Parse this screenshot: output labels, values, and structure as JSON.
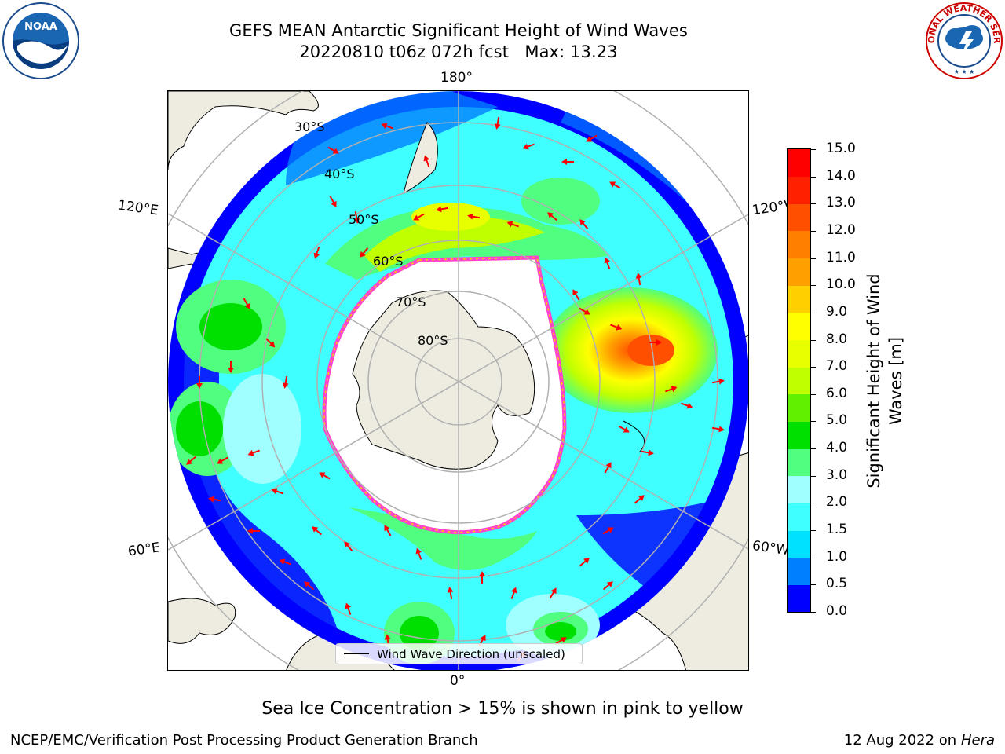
{
  "header": {
    "title_line1": "GEFS MEAN Antarctic Significant Height of Wind Waves",
    "title_line2": "20220810 t06z 072h fcst   Max: 13.23"
  },
  "logos": {
    "left": "noaa-logo",
    "left_text": "NOAA",
    "right": "national-weather-service-logo",
    "right_text": "NATIONAL WEATHER SERVICE"
  },
  "map": {
    "projection": "south-polar-stereographic",
    "longitude_labels": {
      "top": "180°",
      "bottom": "0°",
      "upper_left": "120°E",
      "upper_right": "120°W",
      "lower_left": "60°E",
      "lower_right": "60°W"
    },
    "latitude_labels": [
      "30°S",
      "40°S",
      "50°S",
      "60°S",
      "70°S",
      "80°S"
    ],
    "colors": {
      "land": "#eeece0",
      "ice_edge": "#ff44cc",
      "graticule": "#b0b0b0",
      "arrow": "#ff0000"
    },
    "legend": {
      "label": "Wind Wave Direction (unscaled)"
    }
  },
  "colorbar": {
    "label_line1": "Significant Height of Wind",
    "label_line2": "Waves [m]",
    "ticks": [
      "0.0",
      "0.5",
      "1.0",
      "1.5",
      "2.0",
      "3.0",
      "4.0",
      "5.0",
      "6.0",
      "7.0",
      "8.0",
      "9.0",
      "10.0",
      "11.0",
      "12.0",
      "13.0",
      "14.0",
      "15.0"
    ],
    "colors": [
      "#0000ff",
      "#0080ff",
      "#00e0ff",
      "#40ffff",
      "#a0ffff",
      "#50ff80",
      "#00e000",
      "#60f000",
      "#c0ff00",
      "#e8ff00",
      "#ffff00",
      "#ffd000",
      "#ffa000",
      "#ff8000",
      "#ff5000",
      "#ff2000",
      "#ff0000"
    ]
  },
  "caption": "Sea Ice Concentration > 15% is shown in pink to yellow",
  "footer": {
    "left": "NCEP/EMC/Verification Post Processing Product Generation Branch",
    "right_date": "12 Aug 2022 on",
    "right_machine": "Hera"
  }
}
